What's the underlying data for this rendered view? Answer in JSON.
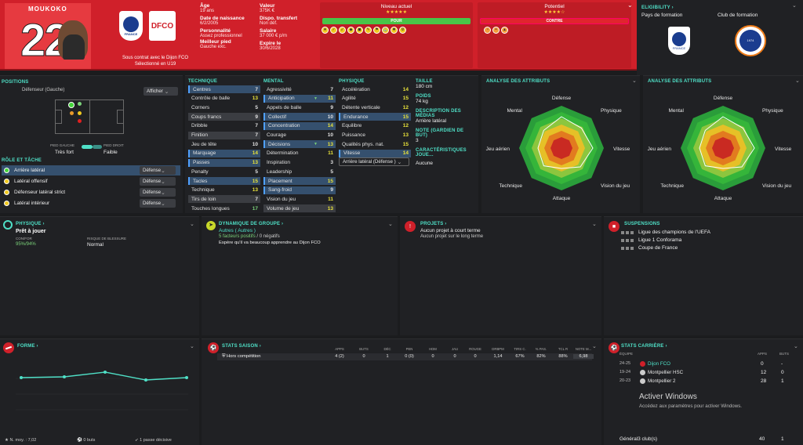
{
  "player": {
    "name": "MOUKOKO",
    "number": "22",
    "contract": "Sous contrat avec le Dijon FCO",
    "selection": "Sélectionné en U19"
  },
  "header": {
    "age_k": "Âge",
    "age_v": "19 ans",
    "birth_k": "Date de naissance",
    "birth_v": "6/2/2005",
    "pers_k": "Personnalité",
    "pers_v": "Assez professionnel",
    "foot_k": "Meilleur pied",
    "foot_v": "Gauche exc.",
    "value_k": "Valeur",
    "value_v": "375K €",
    "transfer_k": "Dispo. transfert",
    "transfer_v": "Non déf.",
    "salary_k": "Salaire",
    "salary_v": "37 000 € p/m",
    "expire_k": "Expire le",
    "expire_v": "30/6/2028",
    "current_level": "Niveau actuel",
    "potential": "Potentiel",
    "pour": "POUR",
    "contre": "CONTRE",
    "stars_current": "★★★★★",
    "stars_potential": "★★★★☆"
  },
  "eligibility": {
    "title": "ELIGIBILITY",
    "country_label": "Pays de formation",
    "club_label": "Club de formation",
    "club_logo_text": "1974"
  },
  "france_text": "FRANCE",
  "dfco_text": "DFCO",
  "positions": {
    "title": "POSITIONS",
    "position": "Défenseur (Gauche)",
    "show_btn": "Afficher",
    "left_foot_k": "PIED GAUCHE",
    "left_foot_v": "Très fort",
    "right_foot_k": "PIED DROIT",
    "right_foot_v": "Faible"
  },
  "roles": {
    "title": "RÔLE ET TÂCHE",
    "items": [
      {
        "name": "Arrière latéral",
        "duty": "Défense"
      },
      {
        "name": "Latéral offensif",
        "duty": "Défense"
      },
      {
        "name": "Défenseur latéral strict",
        "duty": "Défense"
      },
      {
        "name": "Latéral intérieur",
        "duty": "Défense"
      }
    ]
  },
  "technique": {
    "title": "TECHNIQUE",
    "items": [
      {
        "n": "Centres",
        "v": "7"
      },
      {
        "n": "Contrôle de balle",
        "v": "13"
      },
      {
        "n": "Corners",
        "v": "5"
      },
      {
        "n": "Coups francs",
        "v": "9"
      },
      {
        "n": "Dribble",
        "v": "7"
      },
      {
        "n": "Finition",
        "v": "7"
      },
      {
        "n": "Jeu de tête",
        "v": "10"
      },
      {
        "n": "Marquage",
        "v": "14"
      },
      {
        "n": "Passes",
        "v": "13"
      },
      {
        "n": "Penalty",
        "v": "5"
      },
      {
        "n": "Tacles",
        "v": "15"
      },
      {
        "n": "Technique",
        "v": "13"
      },
      {
        "n": "Tirs de loin",
        "v": "7"
      },
      {
        "n": "Touches longues",
        "v": "17"
      }
    ]
  },
  "mental": {
    "title": "MENTAL",
    "items": [
      {
        "n": "Agressivité",
        "v": "7"
      },
      {
        "n": "Anticipation",
        "v": "11"
      },
      {
        "n": "Appels de balle",
        "v": "9"
      },
      {
        "n": "Collectif",
        "v": "10"
      },
      {
        "n": "Concentration",
        "v": "14"
      },
      {
        "n": "Courage",
        "v": "10"
      },
      {
        "n": "Décisions",
        "v": "13"
      },
      {
        "n": "Détermination",
        "v": "11"
      },
      {
        "n": "Inspiration",
        "v": "3"
      },
      {
        "n": "Leadership",
        "v": "5"
      },
      {
        "n": "Placement",
        "v": "15"
      },
      {
        "n": "Sang-froid",
        "v": "9"
      },
      {
        "n": "Vision du jeu",
        "v": "11"
      },
      {
        "n": "Volume de jeu",
        "v": "13"
      }
    ]
  },
  "physique": {
    "title": "PHYSIQUE",
    "items": [
      {
        "n": "Accélération",
        "v": "14"
      },
      {
        "n": "Agilité",
        "v": "15"
      },
      {
        "n": "Détente verticale",
        "v": "12"
      },
      {
        "n": "Endurance",
        "v": "15"
      },
      {
        "n": "Equilibre",
        "v": "12"
      },
      {
        "n": "Puissance",
        "v": "13"
      },
      {
        "n": "Qualités phys. nat.",
        "v": "15"
      },
      {
        "n": "Vitesse",
        "v": "14"
      }
    ],
    "role_select": "Arrière latéral (Défense )"
  },
  "info": {
    "taille_k": "TAILLE",
    "taille_v": "180 cm",
    "poids_k": "POIDS",
    "poids_v": "74 kg",
    "media_k": "DESCRIPTION DES MÉDIAS",
    "media_v": "Arrière latéral",
    "note_k": "NOTE (GARDIEN DE BUT)",
    "note_v": "3",
    "carac_k": "CARACTÉRISTIQUES JOUE...",
    "carac_v": "Aucune"
  },
  "radar": {
    "title": "ANALYSE DES ATTRIBUTS",
    "labels": [
      "Défense",
      "Physique",
      "Vitesse",
      "Vision du jeu",
      "Attaque",
      "Technique",
      "Jeu aérien",
      "Mental"
    ]
  },
  "fitness": {
    "title": "PHYSIQUE",
    "status": "Prêt à jouer",
    "cond_k": "CON/FOR",
    "cond_v": "95%/94%",
    "risk_k": "RISQUE DE BLESSURE",
    "risk_v": "Normal"
  },
  "dynamics": {
    "title": "DYNAMIQUE DE GROUPE",
    "group": "Autres ( Autres )",
    "factors_pos": "5 facteurs positifs",
    "factors_neg": "/ 0 négatifs",
    "hope": "Espère qu'il va beaucoup apprendre au Dijon FCO"
  },
  "projects": {
    "title": "PROJETS",
    "short": "Aucun projet à court terme",
    "long": "Aucun projet sur le long terme"
  },
  "suspensions": {
    "title": "SUSPENSIONS",
    "items": [
      "Ligue des champions de l'UEFA",
      "Ligue 1 Conforama",
      "Coupe de France"
    ]
  },
  "forme": {
    "title": "FORME",
    "avg": "N. moy. : 7,02",
    "goals": "0 buts",
    "assists": "1 passe décisive"
  },
  "season": {
    "title": "STATS SAISON",
    "headers": [
      "APPS",
      "BUTS",
      "DÉC",
      "PEN",
      "HDM",
      "JAU",
      "ROUGE",
      "DRBPM",
      "TIRS C.",
      "% PAS.",
      "TCL R",
      "NOTE M..."
    ],
    "row": {
      "comp": "Hors compétition",
      "vals": [
        "4 (2)",
        "0",
        "1",
        "0 (0)",
        "0",
        "0",
        "0",
        "1,14",
        "67%",
        "82%",
        "88%",
        "6,98"
      ]
    }
  },
  "career": {
    "title": "STATS CARRIÈRE",
    "equipe": "ÉQUIPE",
    "apps": "APPS",
    "buts": "BUTS",
    "rows": [
      {
        "year": "24-25",
        "club": "Dijon FCO",
        "apps": "0",
        "buts": "-"
      },
      {
        "year": "19-24",
        "club": "Montpellier HSC",
        "apps": "12",
        "buts": "0"
      },
      {
        "year": "20-23",
        "club": "Montpellier 2",
        "apps": "28",
        "buts": "1"
      }
    ],
    "total_label": "Général3 club(s)",
    "total_apps": "40",
    "total_buts": "1"
  },
  "windows": {
    "title": "Activer Windows",
    "sub": "Accédez aux paramètres pour activer Windows."
  },
  "colors": {
    "accent": "#4fe0c7",
    "red": "#d0202a",
    "bg": "#1b1c1e",
    "panel": "#202124"
  }
}
